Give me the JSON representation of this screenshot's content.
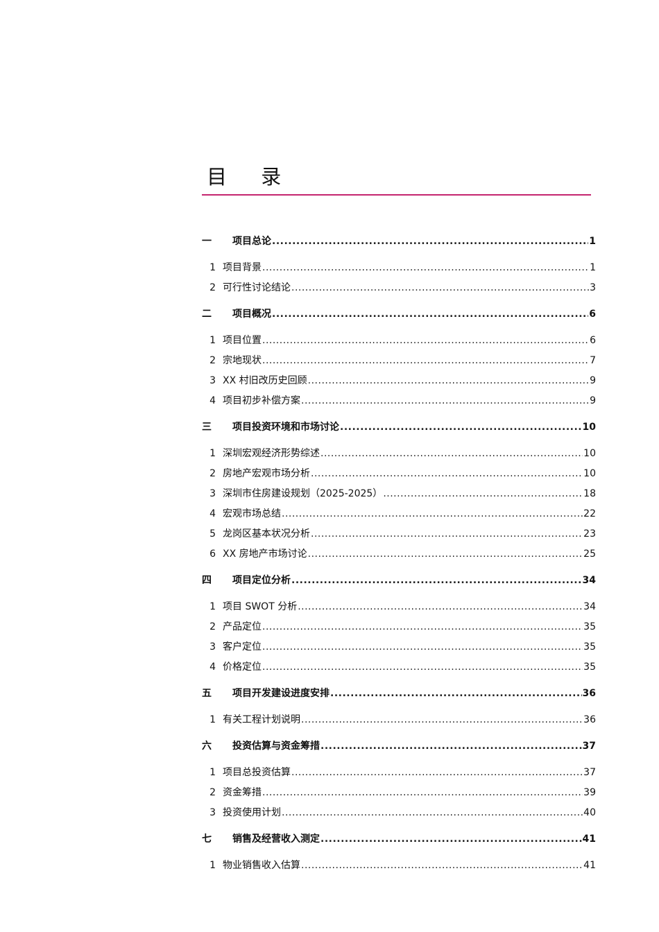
{
  "title": "目  录",
  "accent_color": "#c4246e",
  "entries": [
    {
      "level": 1,
      "num": "一",
      "text": "项目总论",
      "page": "1"
    },
    {
      "level": 2,
      "num": "1",
      "text": "项目背景",
      "page": "1"
    },
    {
      "level": 2,
      "num": "2",
      "text": "可行性讨论结论",
      "page": "3"
    },
    {
      "level": 1,
      "num": "二",
      "text": "项目概况",
      "page": "6"
    },
    {
      "level": 2,
      "num": "1",
      "text": "项目位置",
      "page": "6"
    },
    {
      "level": 2,
      "num": "2",
      "text": "宗地现状",
      "page": "7"
    },
    {
      "level": 2,
      "num": "3",
      "text": "XX 村旧改历史回顾",
      "page": "9"
    },
    {
      "level": 2,
      "num": "4",
      "text": "项目初步补偿方案",
      "page": "9"
    },
    {
      "level": 1,
      "num": "三",
      "text": "项目投资环境和市场讨论",
      "page": "10"
    },
    {
      "level": 2,
      "num": "1",
      "text": "深圳宏观经济形势综述",
      "page": "10"
    },
    {
      "level": 2,
      "num": "2",
      "text": "房地产宏观市场分析",
      "page": "10"
    },
    {
      "level": 2,
      "num": "3",
      "text": "深圳市住房建设规划（2025-2025）",
      "page": "18"
    },
    {
      "level": 2,
      "num": "4",
      "text": "宏观市场总结",
      "page": "22"
    },
    {
      "level": 2,
      "num": "5",
      "text": "龙岗区基本状况分析",
      "page": "23"
    },
    {
      "level": 2,
      "num": "6",
      "text": "XX 房地产市场讨论",
      "page": "25"
    },
    {
      "level": 1,
      "num": "四",
      "text": "项目定位分析",
      "page": "34"
    },
    {
      "level": 2,
      "num": "1",
      "text": "项目 SWOT 分析",
      "page": "34"
    },
    {
      "level": 2,
      "num": "2",
      "text": "产品定位",
      "page": "35"
    },
    {
      "level": 2,
      "num": "3",
      "text": "客户定位",
      "page": "35"
    },
    {
      "level": 2,
      "num": "4",
      "text": "价格定位",
      "page": "35"
    },
    {
      "level": 1,
      "num": "五",
      "text": "项目开发建设进度安排",
      "page": "36"
    },
    {
      "level": 2,
      "num": "1",
      "text": "有关工程计划说明",
      "page": "36"
    },
    {
      "level": 1,
      "num": "六",
      "text": "投资估算与资金筹措",
      "page": "37"
    },
    {
      "level": 2,
      "num": "1",
      "text": "项目总投资估算",
      "page": "37"
    },
    {
      "level": 2,
      "num": "2",
      "text": "资金筹措",
      "page": "39"
    },
    {
      "level": 2,
      "num": "3",
      "text": "投资使用计划",
      "page": "40"
    },
    {
      "level": 1,
      "num": "七",
      "text": "销售及经营收入测定",
      "page": "41"
    },
    {
      "level": 2,
      "num": "1",
      "text": "物业销售收入估算",
      "page": "41"
    }
  ]
}
